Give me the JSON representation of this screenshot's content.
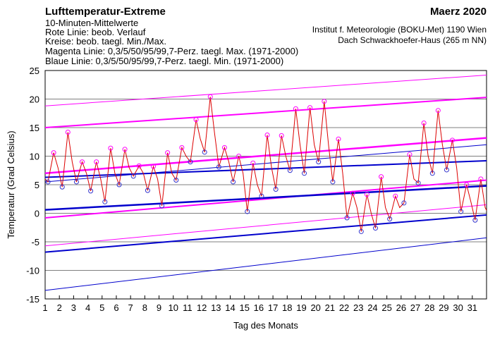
{
  "chart_data": {
    "type": "line",
    "title": "Lufttemperatur-Extreme",
    "notes": [
      "10-Minuten-Mittelwerte",
      "Rote Linie: beob. Verlauf",
      "Kreise: beob. taegl. Min./Max.",
      "Magenta Linie: 0,3/5/50/95/99,7-Perz. taegl. Max. (1971-2000)",
      "Blaue Linie: 0,3/5/50/95/99,7-Perz. taegl. Min. (1971-2000)"
    ],
    "period": "Maerz 2020",
    "source": [
      "Institut f. Meteorologie (BOKU-Met) 1190 Wien",
      "Dach Schwackhoefer-Haus (265 m NN)"
    ],
    "ylabel": "Temperatur (Grad Celsius)",
    "xlabel": "Tag des Monats",
    "xlim": [
      1,
      32
    ],
    "xticks": [
      1,
      2,
      3,
      4,
      5,
      6,
      7,
      8,
      9,
      10,
      11,
      12,
      13,
      14,
      15,
      16,
      17,
      18,
      19,
      20,
      21,
      22,
      23,
      24,
      25,
      26,
      27,
      28,
      29,
      30,
      31
    ],
    "ylim": [
      -15,
      25
    ],
    "yticks": [
      25,
      20,
      15,
      10,
      5,
      0,
      -5,
      -10,
      -15
    ],
    "grid": true,
    "max_percentiles": [
      {
        "color": "#ff00ff",
        "x": [
          1,
          32
        ],
        "values": [
          18.8,
          24.2
        ]
      },
      {
        "color": "#ff00ff",
        "x": [
          1,
          32
        ],
        "values": [
          15,
          20.3
        ]
      },
      {
        "color": "#ff00ff",
        "x": [
          1,
          32
        ],
        "values": [
          7,
          13.2
        ]
      },
      {
        "color": "#ff00ff",
        "x": [
          1,
          32
        ],
        "values": [
          -0.8,
          5.8
        ]
      },
      {
        "color": "#ff00ff",
        "x": [
          1,
          32
        ],
        "values": [
          -5.7,
          1.5
        ]
      }
    ],
    "min_percentiles": [
      {
        "color": "#0000cc",
        "x": [
          1,
          32
        ],
        "values": [
          5.5,
          12
        ]
      },
      {
        "color": "#0000cc",
        "x": [
          1,
          32
        ],
        "values": [
          6.3,
          9.2
        ]
      },
      {
        "color": "#0000cc",
        "x": [
          1,
          32
        ],
        "values": [
          0.6,
          4.8
        ]
      },
      {
        "color": "#0000cc",
        "x": [
          1,
          32
        ],
        "values": [
          -6.8,
          -0.3
        ]
      },
      {
        "color": "#0000cc",
        "x": [
          1,
          32
        ],
        "values": [
          -13.5,
          -4.3
        ]
      }
    ],
    "observed": {
      "color": "#dd0000",
      "x": [
        1,
        1.2,
        1.6,
        1.9,
        2.2,
        2.6,
        2.9,
        3.2,
        3.6,
        3.9,
        4.2,
        4.6,
        4.9,
        5.2,
        5.6,
        5.9,
        6.2,
        6.6,
        6.9,
        7.2,
        7.6,
        7.9,
        8.2,
        8.6,
        8.9,
        9.2,
        9.6,
        9.9,
        10.2,
        10.6,
        10.9,
        11.2,
        11.6,
        11.9,
        12.2,
        12.6,
        12.9,
        13.2,
        13.6,
        13.9,
        14.2,
        14.6,
        14.9,
        15.2,
        15.6,
        15.9,
        16.2,
        16.6,
        16.9,
        17.2,
        17.6,
        17.9,
        18.2,
        18.6,
        18.9,
        19.2,
        19.6,
        19.9,
        20.2,
        20.6,
        20.9,
        21.2,
        21.6,
        21.9,
        22.2,
        22.6,
        22.9,
        23.2,
        23.6,
        23.9,
        24.2,
        24.6,
        24.9,
        25.2,
        25.6,
        25.9,
        26.2,
        26.6,
        26.9,
        27.2,
        27.6,
        27.9,
        28.2,
        28.6,
        28.9,
        29.2,
        29.6,
        29.9,
        30.2,
        30.6,
        30.9,
        31.2,
        31.6,
        31.9,
        32
      ],
      "values": [
        6,
        5.5,
        10.6,
        8,
        4.6,
        14.2,
        9,
        5.5,
        9,
        7,
        3.9,
        9,
        6,
        2,
        11.4,
        7,
        5,
        11.2,
        8,
        6.5,
        8.3,
        7,
        4,
        8.2,
        6,
        1.3,
        10.6,
        7,
        5.8,
        11.5,
        10,
        9,
        16.4,
        13,
        10.7,
        20.4,
        14,
        8.1,
        11.5,
        9,
        5.5,
        10,
        7,
        0.3,
        8.8,
        5,
        3,
        13.7,
        8,
        4.2,
        13.6,
        10,
        7.5,
        18.3,
        12,
        7,
        18.5,
        12,
        9,
        19.6,
        12,
        5.5,
        13,
        7,
        -0.8,
        3.5,
        1,
        -3.2,
        3.3,
        0,
        -2.6,
        6.4,
        1,
        -1,
        3,
        1,
        1.8,
        10.3,
        6,
        5.3,
        15.8,
        10,
        7,
        18,
        12,
        7.6,
        12.8,
        8,
        0.3,
        5,
        2,
        -1.2,
        6,
        1,
        0.5
      ]
    },
    "daily_max": {
      "color": "#ff00ff",
      "x": [
        1.6,
        2.6,
        3.6,
        4.6,
        5.6,
        6.6,
        7.6,
        8.6,
        9.6,
        10.6,
        11.6,
        12.6,
        13.6,
        14.6,
        15.6,
        16.6,
        17.6,
        18.6,
        19.6,
        20.6,
        21.6,
        22.6,
        23.6,
        24.6,
        25.6,
        26.6,
        27.6,
        28.6,
        29.6,
        30.6,
        31.6
      ],
      "values": [
        10.6,
        14.2,
        9,
        9,
        11.4,
        11.2,
        8.3,
        8.2,
        10.6,
        11.5,
        16.4,
        20.4,
        11.5,
        10,
        8.8,
        13.7,
        13.6,
        18.3,
        18.5,
        19.6,
        13,
        3.5,
        3.3,
        6.4,
        3,
        10.3,
        15.8,
        18,
        12.8,
        5,
        6
      ]
    },
    "daily_min": {
      "color": "#3333cc",
      "x": [
        1.2,
        2.2,
        3.2,
        4.2,
        5.2,
        6.2,
        7.2,
        8.2,
        9.2,
        10.2,
        11.2,
        12.2,
        13.2,
        14.2,
        15.2,
        16.2,
        17.2,
        18.2,
        19.2,
        20.2,
        21.2,
        22.2,
        23.2,
        24.2,
        25.2,
        26.2,
        27.2,
        28.2,
        29.2,
        30.2,
        31.2
      ],
      "values": [
        5.5,
        4.6,
        5.5,
        3.9,
        2,
        5,
        6.5,
        4,
        1.3,
        5.8,
        9,
        10.7,
        8.1,
        5.5,
        0.3,
        3,
        4.2,
        7.5,
        7,
        9,
        5.5,
        -0.8,
        -3.2,
        -2.6,
        -1,
        1.8,
        5.3,
        7,
        7.6,
        0.3,
        -1.2
      ]
    }
  }
}
